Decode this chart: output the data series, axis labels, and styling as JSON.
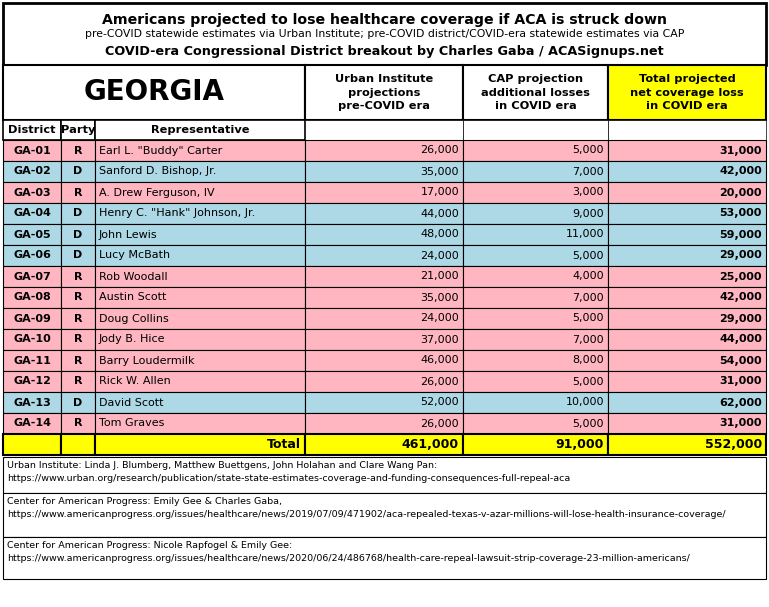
{
  "title_line1": "Americans projected to lose healthcare coverage if ACA is struck down",
  "title_line2": "pre-COVID statewide estimates via Urban Institute; pre-COVID district/COVID-era statewide estimates via CAP",
  "title_line3": "COVID-era Congressional District breakout by Charles Gaba / ACASignups.net",
  "state": "GEORGIA",
  "rows": [
    [
      "GA-01",
      "R",
      "Earl L. \"Buddy\" Carter",
      "26,000",
      "5,000",
      "31,000"
    ],
    [
      "GA-02",
      "D",
      "Sanford D. Bishop, Jr.",
      "35,000",
      "7,000",
      "42,000"
    ],
    [
      "GA-03",
      "R",
      "A. Drew Ferguson, IV",
      "17,000",
      "3,000",
      "20,000"
    ],
    [
      "GA-04",
      "D",
      "Henry C. \"Hank\" Johnson, Jr.",
      "44,000",
      "9,000",
      "53,000"
    ],
    [
      "GA-05",
      "D",
      "John Lewis",
      "48,000",
      "11,000",
      "59,000"
    ],
    [
      "GA-06",
      "D",
      "Lucy McBath",
      "24,000",
      "5,000",
      "29,000"
    ],
    [
      "GA-07",
      "R",
      "Rob Woodall",
      "21,000",
      "4,000",
      "25,000"
    ],
    [
      "GA-08",
      "R",
      "Austin Scott",
      "35,000",
      "7,000",
      "42,000"
    ],
    [
      "GA-09",
      "R",
      "Doug Collins",
      "24,000",
      "5,000",
      "29,000"
    ],
    [
      "GA-10",
      "R",
      "Jody B. Hice",
      "37,000",
      "7,000",
      "44,000"
    ],
    [
      "GA-11",
      "R",
      "Barry Loudermilk",
      "46,000",
      "8,000",
      "54,000"
    ],
    [
      "GA-12",
      "R",
      "Rick W. Allen",
      "26,000",
      "5,000",
      "31,000"
    ],
    [
      "GA-13",
      "D",
      "David Scott",
      "52,000",
      "10,000",
      "62,000"
    ],
    [
      "GA-14",
      "R",
      "Tom Graves",
      "26,000",
      "5,000",
      "31,000"
    ]
  ],
  "total_row": [
    "",
    "",
    "Total",
    "461,000",
    "91,000",
    "552,000"
  ],
  "party_colors": {
    "R": "#FFB6C1",
    "D": "#ADD8E6"
  },
  "yellow_bg": "#FFFF00",
  "white_bg": "#FFFFFF",
  "footnotes": [
    [
      "Urban Institute: Linda J. Blumberg, Matthew Buettgens, John Holahan and Clare Wang Pan:",
      "https://www.urban.org/research/publication/state-state-estimates-coverage-and-funding-consequences-full-repeal-aca"
    ],
    [
      "Center for American Progress: Emily Gee & Charles Gaba,",
      "https://www.americanprogress.org/issues/healthcare/news/2019/07/09/471902/aca-repealed-texas-v-azar-millions-will-lose-health-insurance-coverage/"
    ],
    [
      "Center for American Progress: Nicole Rapfogel & Emily Gee:",
      "https://www.americanprogress.org/issues/healthcare/news/2020/06/24/486768/health-care-repeal-lawsuit-strip-coverage-23-million-americans/"
    ]
  ]
}
